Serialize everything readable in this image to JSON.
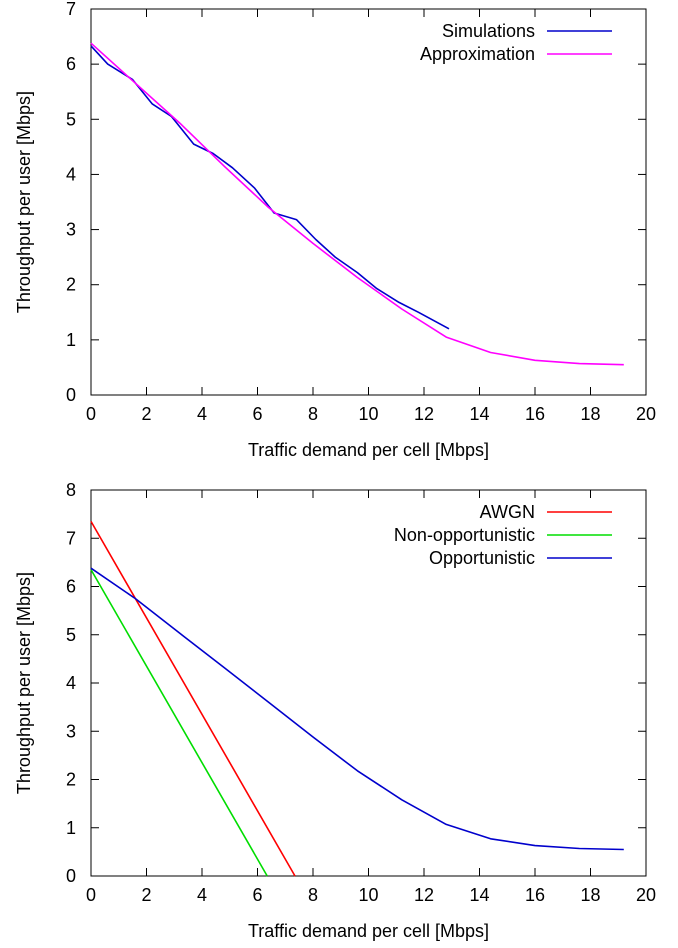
{
  "chart_data": [
    {
      "type": "line",
      "xlabel": "Traffic demand per cell [Mbps]",
      "ylabel": "Throughput per user [Mbps]",
      "xlim": [
        0,
        20
      ],
      "ylim": [
        0,
        7
      ],
      "xticks": [
        0,
        2,
        4,
        6,
        8,
        10,
        12,
        14,
        16,
        18,
        20
      ],
      "yticks": [
        0,
        1,
        2,
        3,
        4,
        5,
        6,
        7
      ],
      "grid": false,
      "legend_position": "top-right",
      "series": [
        {
          "name": "Simulations",
          "color": "#0000cc",
          "x": [
            0,
            0.6,
            1.5,
            2.2,
            2.9,
            3.7,
            4.4,
            5.1,
            5.9,
            6.6,
            7.4,
            8.1,
            8.8,
            9.6,
            10.3,
            11.1,
            11.8,
            12.9
          ],
          "y": [
            6.33,
            6.0,
            5.72,
            5.28,
            5.05,
            4.55,
            4.38,
            4.12,
            3.75,
            3.3,
            3.18,
            2.82,
            2.5,
            2.22,
            1.93,
            1.68,
            1.5,
            1.2
          ]
        },
        {
          "name": "Approximation",
          "color": "#ff00ff",
          "x": [
            0,
            1.5,
            3.2,
            4.8,
            6.4,
            8.0,
            9.6,
            11.2,
            12.8,
            14.4,
            16.0,
            17.6,
            19.2
          ],
          "y": [
            6.38,
            5.7,
            4.93,
            4.15,
            3.4,
            2.75,
            2.13,
            1.56,
            1.05,
            0.77,
            0.63,
            0.57,
            0.55
          ]
        }
      ]
    },
    {
      "type": "line",
      "xlabel": "Traffic demand per cell [Mbps]",
      "ylabel": "Throughput per user [Mbps]",
      "xlim": [
        0,
        20
      ],
      "ylim": [
        0,
        8
      ],
      "xticks": [
        0,
        2,
        4,
        6,
        8,
        10,
        12,
        14,
        16,
        18,
        20
      ],
      "yticks": [
        0,
        1,
        2,
        3,
        4,
        5,
        6,
        7,
        8
      ],
      "grid": false,
      "legend_position": "top-right",
      "series": [
        {
          "name": "AWGN",
          "color": "#ff0000",
          "x": [
            0,
            7.35
          ],
          "y": [
            7.35,
            0
          ]
        },
        {
          "name": "Non-opportunistic",
          "color": "#00dd00",
          "x": [
            0,
            6.35
          ],
          "y": [
            6.35,
            0
          ]
        },
        {
          "name": "Opportunistic",
          "color": "#0000cc",
          "x": [
            0,
            1.6,
            3.2,
            4.8,
            6.4,
            8.0,
            9.6,
            11.2,
            12.8,
            14.4,
            16.0,
            17.6,
            19.2
          ],
          "y": [
            6.38,
            5.75,
            5.03,
            4.32,
            3.6,
            2.88,
            2.18,
            1.58,
            1.07,
            0.77,
            0.63,
            0.57,
            0.55
          ]
        }
      ]
    }
  ]
}
